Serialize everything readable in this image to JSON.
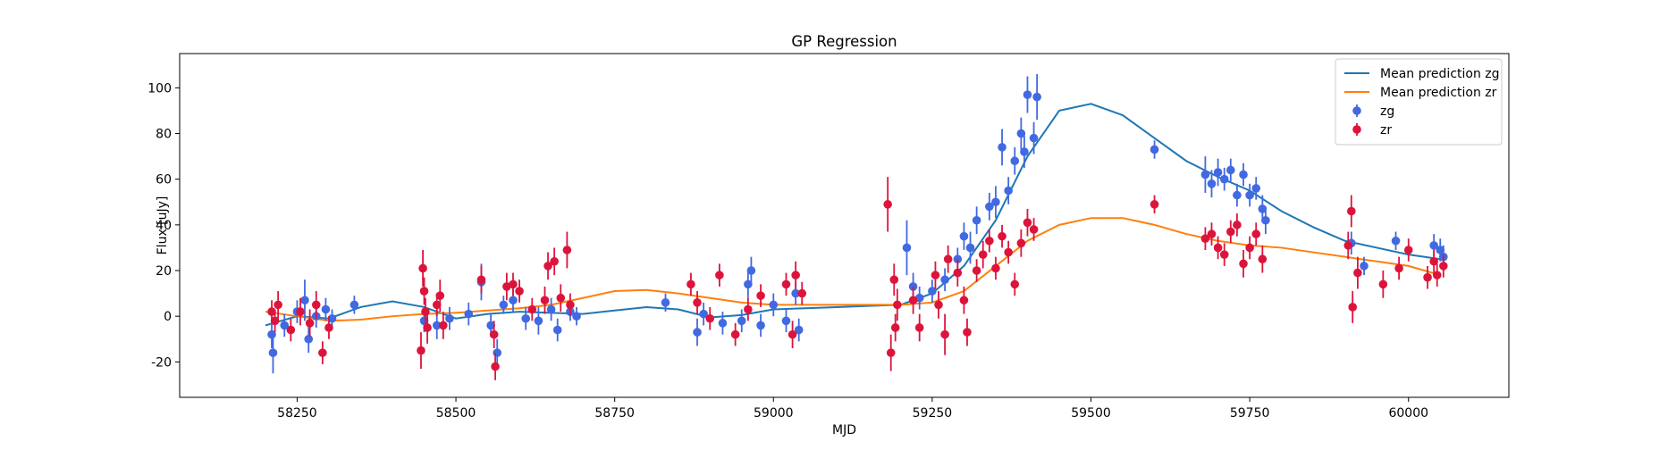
{
  "chart_data": {
    "type": "line",
    "title": "GP Regression",
    "xlabel": "MJD",
    "ylabel": "Flux [uJy]",
    "xlim": [
      58065,
      60158
    ],
    "ylim": [
      -35.5,
      115
    ],
    "xticks": [
      58250,
      58500,
      58750,
      59000,
      59250,
      59500,
      59750,
      60000
    ],
    "yticks": [
      -20,
      0,
      20,
      40,
      60,
      80,
      100
    ],
    "legend": "upper right",
    "series": [
      {
        "name": "Mean prediction zg",
        "type": "line",
        "color": "#1f77b4",
        "x": [
          58200,
          58250,
          58300,
          58350,
          58400,
          58450,
          58500,
          58550,
          58600,
          58650,
          58700,
          58750,
          58800,
          58850,
          58900,
          58950,
          59000,
          59050,
          59100,
          59150,
          59200,
          59250,
          59300,
          59350,
          59400,
          59450,
          59500,
          59550,
          59600,
          59650,
          59700,
          59750,
          59800,
          59850,
          59900,
          59950,
          60000,
          60050
        ],
        "values": [
          -4,
          0,
          -1,
          4,
          6.5,
          4,
          -1,
          1,
          2,
          1.5,
          1,
          2.5,
          4,
          3,
          -0.5,
          0.5,
          3,
          3.5,
          4,
          4.5,
          5,
          10,
          22,
          42,
          70,
          90,
          93,
          88,
          78,
          68,
          61,
          55,
          46,
          39,
          33,
          30,
          27,
          25
        ]
      },
      {
        "name": "Mean prediction zr",
        "type": "line",
        "color": "#ff7f0e",
        "x": [
          58200,
          58250,
          58300,
          58350,
          58400,
          58450,
          58500,
          58550,
          58600,
          58650,
          58700,
          58750,
          58800,
          58850,
          58900,
          58950,
          59000,
          59050,
          59100,
          59150,
          59200,
          59250,
          59300,
          59350,
          59400,
          59450,
          59500,
          59550,
          59600,
          59650,
          59700,
          59750,
          59800,
          59850,
          59900,
          59950,
          60000,
          60050
        ],
        "values": [
          2,
          0,
          -2,
          -1.5,
          0,
          1,
          1.5,
          2.5,
          3.5,
          5,
          8,
          11,
          11.5,
          10,
          8,
          6,
          5,
          5,
          5,
          5,
          5,
          6,
          11,
          22,
          33,
          40,
          43,
          43,
          40,
          36,
          33,
          31,
          30,
          28,
          26,
          24,
          22,
          18
        ]
      },
      {
        "name": "zg",
        "type": "errorbar",
        "color": "#4169e1",
        "x": [
          58210,
          58212,
          58230,
          58250,
          58262,
          58268,
          58280,
          58295,
          58305,
          58340,
          58450,
          58470,
          58490,
          58520,
          58540,
          58555,
          58565,
          58575,
          58590,
          58610,
          58630,
          58650,
          58660,
          58680,
          58690,
          58830,
          58880,
          58890,
          58920,
          58950,
          58960,
          58965,
          58980,
          59000,
          59020,
          59035,
          59040,
          59210,
          59220,
          59230,
          59250,
          59270,
          59290,
          59300,
          59310,
          59320,
          59340,
          59350,
          59360,
          59370,
          59380,
          59390,
          59395,
          59400,
          59410,
          59415,
          59600,
          59680,
          59690,
          59700,
          59710,
          59720,
          59730,
          59740,
          59750,
          59760,
          59770,
          59775,
          59910,
          59930,
          59980,
          60040,
          60050,
          60055
        ],
        "values": [
          -8,
          -16,
          -4,
          2,
          7,
          -10,
          0,
          3,
          -1,
          5,
          -2,
          -4,
          -1,
          1,
          15,
          -4,
          -16,
          5,
          7,
          -1,
          -2,
          3,
          -6,
          2,
          0,
          6,
          -7,
          1,
          -3,
          -2,
          14,
          20,
          -4,
          5,
          -2,
          10,
          -6,
          30,
          13,
          8,
          11,
          16,
          25,
          35,
          30,
          42,
          48,
          50,
          74,
          55,
          68,
          80,
          72,
          97,
          78,
          96,
          73,
          62,
          58,
          63,
          60,
          64,
          53,
          62,
          53,
          56,
          47,
          42,
          32,
          22,
          33,
          31,
          29,
          26
        ],
        "errors": [
          6,
          9,
          5,
          5,
          9,
          6,
          5,
          5,
          4,
          4,
          5,
          6,
          5,
          5,
          8,
          5,
          6,
          4,
          5,
          5,
          6,
          5,
          5,
          4,
          4,
          4,
          6,
          5,
          5,
          5,
          6,
          6,
          5,
          5,
          5,
          5,
          5,
          12,
          6,
          5,
          5,
          5,
          5,
          6,
          7,
          6,
          6,
          7,
          8,
          6,
          6,
          7,
          7,
          8,
          7,
          10,
          4,
          8,
          6,
          6,
          5,
          5,
          5,
          5,
          5,
          5,
          6,
          6,
          5,
          4,
          4,
          5,
          5,
          5
        ]
      },
      {
        "name": "zr",
        "type": "errorbar",
        "color": "#dc143c",
        "x": [
          58210,
          58215,
          58220,
          58240,
          58255,
          58270,
          58280,
          58290,
          58300,
          58445,
          58448,
          58450,
          58452,
          58455,
          58470,
          58475,
          58480,
          58540,
          58560,
          58562,
          58580,
          58590,
          58600,
          58620,
          58640,
          58645,
          58655,
          58665,
          58675,
          58680,
          58870,
          58880,
          58900,
          58915,
          58940,
          58960,
          58980,
          59020,
          59030,
          59035,
          59045,
          59180,
          59185,
          59190,
          59192,
          59195,
          59220,
          59230,
          59255,
          59260,
          59270,
          59275,
          59290,
          59300,
          59305,
          59320,
          59330,
          59340,
          59350,
          59360,
          59370,
          59380,
          59390,
          59400,
          59410,
          59600,
          59680,
          59690,
          59700,
          59710,
          59720,
          59730,
          59740,
          59750,
          59760,
          59770,
          59905,
          59910,
          59912,
          59920,
          59960,
          59985,
          60000,
          60030,
          60040,
          60045,
          60055
        ],
        "values": [
          2,
          -2,
          5,
          -6,
          2,
          -3,
          5,
          -16,
          -5,
          -15,
          21,
          11,
          2,
          -5,
          5,
          9,
          -4,
          16,
          -8,
          -22,
          13,
          14,
          11,
          3,
          7,
          22,
          24,
          8,
          29,
          5,
          14,
          6,
          -1,
          18,
          -8,
          3,
          9,
          14,
          -8,
          18,
          10,
          49,
          -16,
          16,
          -5,
          5,
          7,
          -5,
          18,
          5,
          -8,
          25,
          19,
          7,
          -7,
          20,
          27,
          33,
          21,
          35,
          28,
          14,
          32,
          41,
          38,
          49,
          34,
          36,
          30,
          27,
          37,
          40,
          23,
          30,
          36,
          25,
          31,
          46,
          4,
          19,
          14,
          21,
          29,
          17,
          24,
          18,
          22
        ],
        "errors": [
          5,
          5,
          6,
          5,
          6,
          6,
          6,
          5,
          5,
          8,
          8,
          6,
          6,
          7,
          5,
          7,
          6,
          6,
          6,
          6,
          6,
          5,
          5,
          5,
          6,
          6,
          6,
          6,
          8,
          5,
          5,
          5,
          5,
          5,
          5,
          5,
          5,
          5,
          6,
          6,
          5,
          12,
          8,
          7,
          6,
          7,
          6,
          6,
          6,
          6,
          9,
          6,
          6,
          6,
          6,
          5,
          6,
          5,
          5,
          5,
          5,
          5,
          6,
          6,
          5,
          4,
          5,
          5,
          5,
          5,
          5,
          5,
          6,
          5,
          5,
          6,
          6,
          7,
          7,
          7,
          6,
          5,
          5,
          5,
          5,
          5,
          5
        ]
      }
    ]
  }
}
